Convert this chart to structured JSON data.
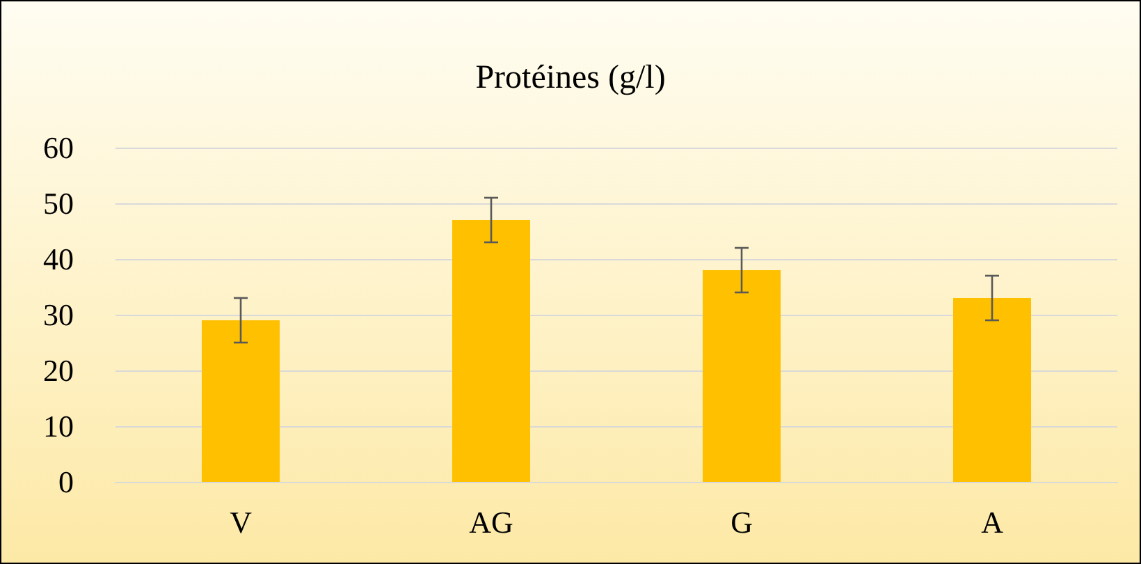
{
  "chart_data": {
    "type": "bar",
    "title": "Protéines (g/l)",
    "categories": [
      "V",
      "AG",
      "G",
      "A"
    ],
    "values": [
      29,
      47,
      38,
      33
    ],
    "errors": [
      4,
      4,
      4,
      4
    ],
    "color": "#ffc000",
    "ylim": [
      0,
      60
    ],
    "yticks": [
      0,
      10,
      20,
      30,
      40,
      50,
      60
    ],
    "grid": "y"
  }
}
